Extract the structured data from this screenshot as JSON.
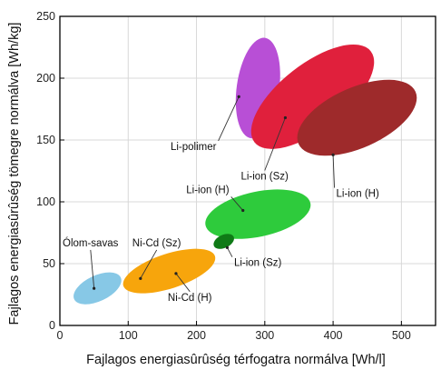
{
  "chart_data": {
    "type": "scatter",
    "title": "",
    "xlabel": "Fajlagos energiasûrûség térfogatra normálva [Wh/l]",
    "ylabel": "Fajlagos energiasûrûség tömegre normálva [Wh/kg]",
    "xlim": [
      0,
      550
    ],
    "ylim": [
      0,
      250
    ],
    "xticks": [
      0,
      100,
      200,
      300,
      400,
      500
    ],
    "yticks": [
      0,
      50,
      100,
      150,
      200,
      250
    ],
    "grid": true,
    "regions": [
      {
        "label": "Li-polimer",
        "color": "#b84fd6",
        "x": [
          260,
          325
        ],
        "y": [
          145,
          240
        ],
        "cx": 290,
        "cy": 192
      },
      {
        "label": "Li-ion (Sz)",
        "color": "#e0203c",
        "x": [
          280,
          460
        ],
        "y": [
          110,
          250
        ],
        "cx": 370,
        "cy": 185
      },
      {
        "label": "Li-ion (H)",
        "color": "#9e2a2b",
        "x": [
          350,
          525
        ],
        "y": [
          135,
          205
        ],
        "cx": 435,
        "cy": 168
      },
      {
        "label": "Li-ion (H)",
        "color": "#2ecb3c",
        "x": [
          210,
          380
        ],
        "y": [
          70,
          110
        ],
        "cx": 290,
        "cy": 90
      },
      {
        "label": "Li-ion (Sz)",
        "color": "#0f7a16",
        "x": [
          225,
          255
        ],
        "y": [
          60,
          75
        ],
        "cx": 240,
        "cy": 68
      },
      {
        "label": "Ni-Cd (Sz)",
        "color": "#f07a10",
        "x": [
          100,
          135
        ],
        "y": [
          32,
          45
        ],
        "cx": 118,
        "cy": 38
      },
      {
        "label": "Ni-Cd (H)",
        "color": "#f7a50c",
        "x": [
          80,
          250
        ],
        "y": [
          26,
          62
        ],
        "cx": 160,
        "cy": 44
      },
      {
        "label": "Ólom-savas",
        "color": "#87c8e6",
        "x": [
          25,
          95
        ],
        "y": [
          18,
          45
        ],
        "cx": 55,
        "cy": 30
      }
    ]
  }
}
